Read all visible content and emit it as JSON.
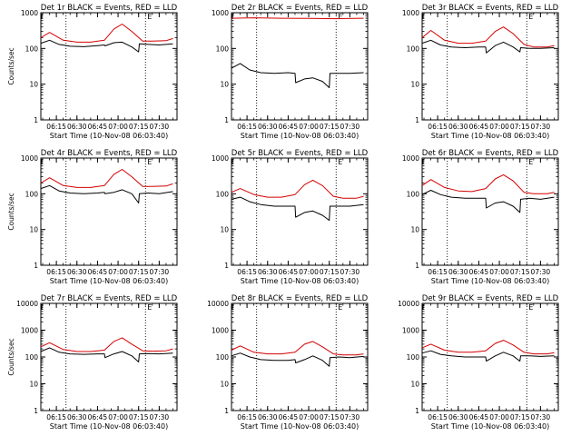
{
  "chart_data": [
    {
      "type": "line",
      "title": "Det 1r BLACK = Events, RED = LLD",
      "xlabel": "Start Time (10-Nov-08 06:03:40)",
      "ylabel": "Counts/sec",
      "y_scale": "log",
      "ylim": [
        1,
        1000
      ],
      "y_ticks": [
        "1",
        "10",
        "100",
        "1000"
      ],
      "xlim": [
        "06:03:40",
        "07:43:00"
      ],
      "x_ticks": [
        "06:15",
        "06:30",
        "06:45",
        "07:00",
        "07:15",
        "07:30"
      ],
      "markers": [
        {
          "x": "06:22",
          "label": ""
        },
        {
          "x": "07:20",
          "label": "E"
        }
      ],
      "series": [
        {
          "color": "#000000",
          "x": [
            "06:03:40",
            "06:10",
            "06:17",
            "06:25",
            "06:35",
            "06:45",
            "06:50",
            "06:50:30",
            "06:57",
            "07:03",
            "07:10",
            "07:15",
            "07:15:30",
            "07:22",
            "07:30",
            "07:40"
          ],
          "y": [
            140,
            170,
            130,
            115,
            112,
            120,
            125,
            118,
            145,
            150,
            110,
            80,
            135,
            130,
            125,
            135
          ]
        },
        {
          "color": "#d40000",
          "x": [
            "06:03:40",
            "06:10",
            "06:20",
            "06:30",
            "06:40",
            "06:50",
            "06:57",
            "07:03",
            "07:10",
            "07:18",
            "07:25",
            "07:35",
            "07:40"
          ],
          "y": [
            200,
            280,
            170,
            150,
            150,
            170,
            350,
            480,
            300,
            160,
            160,
            165,
            190
          ]
        }
      ]
    },
    {
      "type": "line",
      "title": "Det 2r BLACK = Events, RED = LLD",
      "xlabel": "Start Time (10-Nov-08 06:03:40)",
      "ylabel": "",
      "y_scale": "log",
      "ylim": [
        1,
        1000
      ],
      "y_ticks": [
        "1",
        "10",
        "100",
        "1000"
      ],
      "xlim": [
        "06:03:40",
        "07:43:00"
      ],
      "x_ticks": [
        "06:15",
        "06:30",
        "06:45",
        "07:00",
        "07:15",
        "07:30"
      ],
      "markers": [
        {
          "x": "06:22",
          "label": ""
        },
        {
          "x": "07:20",
          "label": "E"
        }
      ],
      "series": [
        {
          "color": "#000000",
          "x": [
            "06:03:40",
            "06:10",
            "06:17",
            "06:25",
            "06:35",
            "06:45",
            "06:50",
            "06:50:30",
            "06:57",
            "07:03",
            "07:10",
            "07:15",
            "07:15:30",
            "07:22",
            "07:30",
            "07:40"
          ],
          "y": [
            28,
            38,
            25,
            21,
            20,
            21,
            20,
            11,
            14,
            15,
            12,
            8,
            20,
            20,
            20,
            21
          ]
        },
        {
          "color": "#d40000",
          "x": [
            "06:03:40",
            "06:20",
            "06:40",
            "07:00",
            "07:20",
            "07:40"
          ],
          "y": [
            700,
            720,
            700,
            690,
            680,
            700
          ]
        }
      ]
    },
    {
      "type": "line",
      "title": "Det 3r BLACK = Events, RED = LLD",
      "xlabel": "Start Time (10-Nov-08 06:03:40)",
      "ylabel": "",
      "y_scale": "log",
      "ylim": [
        1,
        1000
      ],
      "y_ticks": [
        "1",
        "10",
        "100",
        "1000"
      ],
      "xlim": [
        "06:03:40",
        "07:43:00"
      ],
      "x_ticks": [
        "06:15",
        "06:30",
        "06:45",
        "07:00",
        "07:15",
        "07:30"
      ],
      "markers": [
        {
          "x": "06:22",
          "label": ""
        },
        {
          "x": "07:20",
          "label": "E"
        }
      ],
      "series": [
        {
          "color": "#000000",
          "x": [
            "06:03:40",
            "06:10",
            "06:17",
            "06:25",
            "06:35",
            "06:45",
            "06:50",
            "06:50:30",
            "06:57",
            "07:03",
            "07:10",
            "07:15",
            "07:15:30",
            "07:22",
            "07:30",
            "07:40"
          ],
          "y": [
            140,
            170,
            125,
            110,
            105,
            110,
            110,
            75,
            120,
            150,
            110,
            80,
            105,
            100,
            100,
            105
          ]
        },
        {
          "color": "#d40000",
          "x": [
            "06:03:40",
            "06:10",
            "06:20",
            "06:30",
            "06:40",
            "06:50",
            "06:57",
            "07:03",
            "07:10",
            "07:18",
            "07:25",
            "07:35",
            "07:40"
          ],
          "y": [
            200,
            320,
            170,
            140,
            140,
            160,
            300,
            400,
            260,
            130,
            110,
            110,
            120
          ]
        }
      ]
    },
    {
      "type": "line",
      "title": "Det 4r BLACK = Events, RED = LLD",
      "xlabel": "Start Time (10-Nov-08 06:03:40)",
      "ylabel": "Counts/sec",
      "y_scale": "log",
      "ylim": [
        1,
        1000
      ],
      "y_ticks": [
        "1",
        "10",
        "100",
        "1000"
      ],
      "xlim": [
        "06:03:40",
        "07:43:00"
      ],
      "x_ticks": [
        "06:15",
        "06:30",
        "06:45",
        "07:00",
        "07:15",
        "07:30"
      ],
      "markers": [
        {
          "x": "06:22",
          "label": ""
        },
        {
          "x": "07:20",
          "label": "E"
        }
      ],
      "series": [
        {
          "color": "#000000",
          "x": [
            "06:03:40",
            "06:10",
            "06:17",
            "06:25",
            "06:35",
            "06:45",
            "06:50",
            "06:50:30",
            "06:57",
            "07:03",
            "07:10",
            "07:15",
            "07:15:30",
            "07:22",
            "07:30",
            "07:40"
          ],
          "y": [
            140,
            170,
            120,
            105,
            100,
            105,
            110,
            100,
            110,
            130,
            100,
            55,
            100,
            105,
            100,
            115
          ]
        },
        {
          "color": "#d40000",
          "x": [
            "06:03:40",
            "06:10",
            "06:20",
            "06:30",
            "06:40",
            "06:50",
            "06:57",
            "07:03",
            "07:10",
            "07:18",
            "07:25",
            "07:35",
            "07:40"
          ],
          "y": [
            200,
            280,
            170,
            150,
            150,
            170,
            350,
            480,
            300,
            160,
            160,
            165,
            190
          ]
        }
      ]
    },
    {
      "type": "line",
      "title": "Det 5r BLACK = Events, RED = LLD",
      "xlabel": "Start Time (10-Nov-08 06:03:40)",
      "ylabel": "",
      "y_scale": "log",
      "ylim": [
        1,
        1000
      ],
      "y_ticks": [
        "1",
        "10",
        "100",
        "1000"
      ],
      "xlim": [
        "06:03:40",
        "07:43:00"
      ],
      "x_ticks": [
        "06:15",
        "06:30",
        "06:45",
        "07:00",
        "07:15",
        "07:30"
      ],
      "markers": [
        {
          "x": "06:22",
          "label": ""
        },
        {
          "x": "07:20",
          "label": "E"
        }
      ],
      "series": [
        {
          "color": "#000000",
          "x": [
            "06:03:40",
            "06:10",
            "06:17",
            "06:25",
            "06:35",
            "06:45",
            "06:50",
            "06:50:30",
            "06:57",
            "07:03",
            "07:10",
            "07:15",
            "07:15:30",
            "07:22",
            "07:30",
            "07:40"
          ],
          "y": [
            70,
            80,
            60,
            50,
            45,
            45,
            45,
            22,
            30,
            33,
            25,
            18,
            45,
            45,
            45,
            50
          ]
        },
        {
          "color": "#d40000",
          "x": [
            "06:03:40",
            "06:10",
            "06:20",
            "06:30",
            "06:40",
            "06:50",
            "06:57",
            "07:03",
            "07:10",
            "07:18",
            "07:25",
            "07:35",
            "07:40"
          ],
          "y": [
            110,
            140,
            95,
            80,
            80,
            95,
            180,
            240,
            170,
            85,
            75,
            75,
            85
          ]
        }
      ]
    },
    {
      "type": "line",
      "title": "Det 6r BLACK = Events, RED = LLD",
      "xlabel": "Start Time (10-Nov-08 06:03:40)",
      "ylabel": "",
      "y_scale": "log",
      "ylim": [
        1,
        1000
      ],
      "y_ticks": [
        "1",
        "10",
        "100",
        "1000"
      ],
      "xlim": [
        "06:03:40",
        "07:43:00"
      ],
      "x_ticks": [
        "06:15",
        "06:30",
        "06:45",
        "07:00",
        "07:15",
        "07:30"
      ],
      "markers": [
        {
          "x": "06:22",
          "label": ""
        },
        {
          "x": "07:20",
          "label": "E"
        }
      ],
      "series": [
        {
          "color": "#000000",
          "x": [
            "06:03:40",
            "06:10",
            "06:17",
            "06:25",
            "06:35",
            "06:45",
            "06:50",
            "06:50:30",
            "06:57",
            "07:03",
            "07:10",
            "07:15",
            "07:15:30",
            "07:22",
            "07:30",
            "07:40"
          ],
          "y": [
            95,
            125,
            95,
            80,
            75,
            75,
            75,
            40,
            55,
            60,
            45,
            30,
            70,
            75,
            70,
            80
          ]
        },
        {
          "color": "#d40000",
          "x": [
            "06:03:40",
            "06:10",
            "06:20",
            "06:30",
            "06:40",
            "06:50",
            "06:57",
            "07:03",
            "07:10",
            "07:18",
            "07:25",
            "07:35",
            "07:40"
          ],
          "y": [
            170,
            250,
            150,
            120,
            115,
            140,
            260,
            340,
            230,
            110,
            100,
            100,
            110
          ]
        }
      ]
    },
    {
      "type": "line",
      "title": "Det 7r BLACK = Events, RED = LLD",
      "xlabel": "Start Time (10-Nov-08 06:03:40)",
      "ylabel": "Counts/sec",
      "y_scale": "log",
      "ylim": [
        1,
        10000
      ],
      "y_ticks": [
        "1",
        "10",
        "100",
        "1000",
        "10000"
      ],
      "xlim": [
        "06:03:40",
        "07:43:00"
      ],
      "x_ticks": [
        "06:15",
        "06:30",
        "06:45",
        "07:00",
        "07:15",
        "07:30"
      ],
      "markers": [
        {
          "x": "06:22",
          "label": ""
        },
        {
          "x": "07:20",
          "label": "E"
        }
      ],
      "series": [
        {
          "color": "#000000",
          "x": [
            "06:03:40",
            "06:10",
            "06:17",
            "06:25",
            "06:35",
            "06:45",
            "06:50",
            "06:50:30",
            "06:57",
            "07:03",
            "07:10",
            "07:15",
            "07:15:30",
            "07:22",
            "07:30",
            "07:40"
          ],
          "y": [
            160,
            220,
            150,
            130,
            125,
            130,
            130,
            95,
            130,
            160,
            110,
            65,
            130,
            135,
            130,
            140
          ]
        },
        {
          "color": "#d40000",
          "x": [
            "06:03:40",
            "06:10",
            "06:20",
            "06:30",
            "06:40",
            "06:50",
            "06:57",
            "07:03",
            "07:10",
            "07:18",
            "07:25",
            "07:35",
            "07:40"
          ],
          "y": [
            240,
            340,
            190,
            160,
            160,
            180,
            380,
            520,
            300,
            170,
            165,
            170,
            200
          ]
        }
      ]
    },
    {
      "type": "line",
      "title": "Det 8r BLACK = Events, RED = LLD",
      "xlabel": "Start Time (10-Nov-08 06:03:40)",
      "ylabel": "",
      "y_scale": "log",
      "ylim": [
        1,
        10000
      ],
      "y_ticks": [
        "1",
        "10",
        "100",
        "1000",
        "10000"
      ],
      "xlim": [
        "06:03:40",
        "07:43:00"
      ],
      "x_ticks": [
        "06:15",
        "06:30",
        "06:45",
        "07:00",
        "07:15",
        "07:30"
      ],
      "markers": [
        {
          "x": "06:22",
          "label": ""
        },
        {
          "x": "07:20",
          "label": "E"
        }
      ],
      "series": [
        {
          "color": "#000000",
          "x": [
            "06:03:40",
            "06:10",
            "06:17",
            "06:25",
            "06:35",
            "06:45",
            "06:50",
            "06:50:30",
            "06:57",
            "07:03",
            "07:10",
            "07:15",
            "07:15:30",
            "07:22",
            "07:30",
            "07:40"
          ],
          "y": [
            110,
            140,
            100,
            80,
            75,
            75,
            80,
            60,
            80,
            110,
            75,
            45,
            95,
            100,
            95,
            105
          ]
        },
        {
          "color": "#d40000",
          "x": [
            "06:03:40",
            "06:10",
            "06:20",
            "06:30",
            "06:40",
            "06:50",
            "06:57",
            "07:03",
            "07:10",
            "07:18",
            "07:25",
            "07:35",
            "07:40"
          ],
          "y": [
            180,
            260,
            150,
            130,
            130,
            150,
            300,
            380,
            240,
            130,
            120,
            120,
            130
          ]
        }
      ]
    },
    {
      "type": "line",
      "title": "Det 9r BLACK = Events, RED = LLD",
      "xlabel": "Start Time (10-Nov-08 06:03:40)",
      "ylabel": "",
      "y_scale": "log",
      "ylim": [
        1,
        10000
      ],
      "y_ticks": [
        "1",
        "10",
        "100",
        "1000",
        "10000"
      ],
      "xlim": [
        "06:03:40",
        "07:43:00"
      ],
      "x_ticks": [
        "06:15",
        "06:30",
        "06:45",
        "07:00",
        "07:15",
        "07:30"
      ],
      "markers": [
        {
          "x": "06:22",
          "label": ""
        },
        {
          "x": "07:20",
          "label": "E"
        }
      ],
      "series": [
        {
          "color": "#000000",
          "x": [
            "06:03:40",
            "06:10",
            "06:17",
            "06:25",
            "06:35",
            "06:45",
            "06:50",
            "06:50:30",
            "06:57",
            "07:03",
            "07:10",
            "07:15",
            "07:15:30",
            "07:22",
            "07:30",
            "07:40"
          ],
          "y": [
            140,
            170,
            125,
            110,
            100,
            100,
            100,
            70,
            110,
            150,
            110,
            70,
            110,
            110,
            105,
            110
          ]
        },
        {
          "color": "#d40000",
          "x": [
            "06:03:40",
            "06:10",
            "06:20",
            "06:30",
            "06:40",
            "06:50",
            "06:57",
            "07:03",
            "07:10",
            "07:18",
            "07:25",
            "07:35",
            "07:40"
          ],
          "y": [
            220,
            300,
            180,
            150,
            150,
            170,
            320,
            420,
            280,
            150,
            130,
            130,
            145
          ]
        }
      ]
    }
  ]
}
